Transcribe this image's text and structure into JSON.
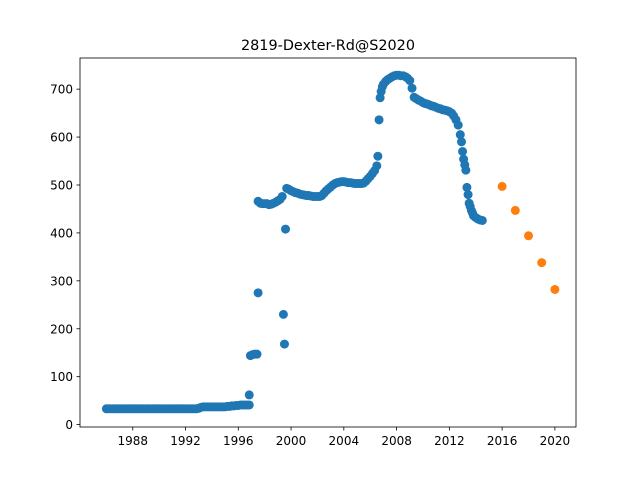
{
  "chart_data": {
    "type": "scatter",
    "title": "2819-Dexter-Rd@S2020",
    "xlabel": "",
    "ylabel": "",
    "xlim": [
      1984.0,
      2021.6
    ],
    "ylim": [
      -5,
      765
    ],
    "xticks": [
      1988,
      1992,
      1996,
      2000,
      2004,
      2008,
      2012,
      2016,
      2020
    ],
    "yticks": [
      0,
      100,
      200,
      300,
      400,
      500,
      600,
      700
    ],
    "grid": false,
    "colors": {
      "historical": "#1f77b4",
      "forecast": "#ff7f0e"
    },
    "series": [
      {
        "key": "historical",
        "points": [
          [
            1986.0,
            33
          ],
          [
            1986.17,
            33
          ],
          [
            1986.33,
            33
          ],
          [
            1986.5,
            33
          ],
          [
            1986.67,
            33
          ],
          [
            1986.83,
            33
          ],
          [
            1987.0,
            33
          ],
          [
            1987.17,
            33
          ],
          [
            1987.33,
            33
          ],
          [
            1987.5,
            33
          ],
          [
            1987.67,
            33
          ],
          [
            1987.83,
            33
          ],
          [
            1988.0,
            33
          ],
          [
            1988.17,
            33
          ],
          [
            1988.33,
            33
          ],
          [
            1988.5,
            33
          ],
          [
            1988.67,
            33
          ],
          [
            1988.83,
            33
          ],
          [
            1989.0,
            33
          ],
          [
            1989.17,
            33
          ],
          [
            1989.33,
            33
          ],
          [
            1989.5,
            33
          ],
          [
            1989.67,
            33
          ],
          [
            1989.83,
            33
          ],
          [
            1990.0,
            33
          ],
          [
            1990.17,
            33
          ],
          [
            1990.33,
            33
          ],
          [
            1990.5,
            33
          ],
          [
            1990.67,
            33
          ],
          [
            1990.83,
            33
          ],
          [
            1991.0,
            33
          ],
          [
            1991.17,
            33
          ],
          [
            1991.33,
            33
          ],
          [
            1991.5,
            33
          ],
          [
            1991.67,
            33
          ],
          [
            1991.83,
            33
          ],
          [
            1992.0,
            33
          ],
          [
            1992.17,
            33
          ],
          [
            1992.33,
            33
          ],
          [
            1992.5,
            33
          ],
          [
            1992.67,
            33
          ],
          [
            1992.83,
            33
          ],
          [
            1993.0,
            34
          ],
          [
            1993.17,
            36
          ],
          [
            1993.33,
            37
          ],
          [
            1993.5,
            37
          ],
          [
            1993.67,
            37
          ],
          [
            1993.83,
            37
          ],
          [
            1994.0,
            37
          ],
          [
            1994.17,
            37
          ],
          [
            1994.33,
            37
          ],
          [
            1994.5,
            37
          ],
          [
            1994.67,
            37
          ],
          [
            1994.83,
            37
          ],
          [
            1995.0,
            37
          ],
          [
            1995.17,
            38
          ],
          [
            1995.33,
            38
          ],
          [
            1995.5,
            39
          ],
          [
            1995.67,
            39
          ],
          [
            1995.83,
            40
          ],
          [
            1996.0,
            40
          ],
          [
            1996.17,
            41
          ],
          [
            1996.33,
            41
          ],
          [
            1996.5,
            41
          ],
          [
            1996.67,
            41
          ],
          [
            1996.83,
            41
          ],
          [
            1996.83,
            62
          ],
          [
            1996.92,
            144
          ],
          [
            1997.08,
            146
          ],
          [
            1997.25,
            147
          ],
          [
            1997.42,
            147
          ],
          [
            1997.5,
            275
          ],
          [
            1997.5,
            466
          ],
          [
            1997.67,
            462
          ],
          [
            1997.83,
            461
          ],
          [
            1998.0,
            461
          ],
          [
            1998.17,
            461
          ],
          [
            1998.33,
            459
          ],
          [
            1998.5,
            460
          ],
          [
            1998.67,
            462
          ],
          [
            1998.83,
            464
          ],
          [
            1999.0,
            467
          ],
          [
            1999.17,
            470
          ],
          [
            1999.33,
            476
          ],
          [
            1999.42,
            230
          ],
          [
            1999.5,
            168
          ],
          [
            1999.58,
            408
          ],
          [
            1999.67,
            493
          ],
          [
            1999.83,
            491
          ],
          [
            2000.0,
            488
          ],
          [
            2000.17,
            486
          ],
          [
            2000.33,
            484
          ],
          [
            2000.5,
            483
          ],
          [
            2000.67,
            481
          ],
          [
            2000.83,
            480
          ],
          [
            2001.0,
            479
          ],
          [
            2001.17,
            478
          ],
          [
            2001.33,
            478
          ],
          [
            2001.5,
            477
          ],
          [
            2001.67,
            476
          ],
          [
            2001.83,
            476
          ],
          [
            2002.0,
            476
          ],
          [
            2002.17,
            476
          ],
          [
            2002.33,
            478
          ],
          [
            2002.5,
            483
          ],
          [
            2002.67,
            488
          ],
          [
            2002.83,
            492
          ],
          [
            2003.0,
            496
          ],
          [
            2003.17,
            500
          ],
          [
            2003.33,
            503
          ],
          [
            2003.5,
            505
          ],
          [
            2003.67,
            506
          ],
          [
            2003.83,
            507
          ],
          [
            2004.0,
            507
          ],
          [
            2004.17,
            506
          ],
          [
            2004.33,
            505
          ],
          [
            2004.5,
            505
          ],
          [
            2004.67,
            504
          ],
          [
            2004.83,
            503
          ],
          [
            2005.0,
            503
          ],
          [
            2005.17,
            503
          ],
          [
            2005.33,
            503
          ],
          [
            2005.5,
            504
          ],
          [
            2005.67,
            508
          ],
          [
            2005.83,
            513
          ],
          [
            2006.0,
            518
          ],
          [
            2006.17,
            524
          ],
          [
            2006.33,
            530
          ],
          [
            2006.5,
            540
          ],
          [
            2006.58,
            560
          ],
          [
            2006.67,
            636
          ],
          [
            2006.75,
            682
          ],
          [
            2006.83,
            695
          ],
          [
            2006.92,
            705
          ],
          [
            2007.0,
            710
          ],
          [
            2007.17,
            716
          ],
          [
            2007.33,
            720
          ],
          [
            2007.5,
            723
          ],
          [
            2007.67,
            726
          ],
          [
            2007.83,
            728
          ],
          [
            2008.0,
            729
          ],
          [
            2008.17,
            729
          ],
          [
            2008.33,
            728
          ],
          [
            2008.5,
            728
          ],
          [
            2008.67,
            726
          ],
          [
            2008.83,
            723
          ],
          [
            2009.0,
            718
          ],
          [
            2009.17,
            702
          ],
          [
            2009.33,
            683
          ],
          [
            2009.5,
            680
          ],
          [
            2009.67,
            677
          ],
          [
            2009.83,
            675
          ],
          [
            2010.0,
            672
          ],
          [
            2010.17,
            670
          ],
          [
            2010.33,
            669
          ],
          [
            2010.5,
            667
          ],
          [
            2010.67,
            665
          ],
          [
            2010.83,
            664
          ],
          [
            2011.0,
            662
          ],
          [
            2011.17,
            660
          ],
          [
            2011.33,
            659
          ],
          [
            2011.5,
            657
          ],
          [
            2011.67,
            656
          ],
          [
            2011.83,
            655
          ],
          [
            2012.0,
            653
          ],
          [
            2012.17,
            650
          ],
          [
            2012.33,
            644
          ],
          [
            2012.5,
            636
          ],
          [
            2012.67,
            625
          ],
          [
            2012.83,
            605
          ],
          [
            2012.92,
            590
          ],
          [
            2013.0,
            570
          ],
          [
            2013.08,
            554
          ],
          [
            2013.17,
            542
          ],
          [
            2013.25,
            531
          ],
          [
            2013.33,
            495
          ],
          [
            2013.42,
            480
          ],
          [
            2013.5,
            462
          ],
          [
            2013.58,
            455
          ],
          [
            2013.67,
            447
          ],
          [
            2013.75,
            442
          ],
          [
            2013.83,
            436
          ],
          [
            2014.0,
            432
          ],
          [
            2014.17,
            429
          ],
          [
            2014.33,
            427
          ],
          [
            2014.5,
            426
          ]
        ]
      },
      {
        "key": "forecast",
        "points": [
          [
            2016.0,
            497
          ],
          [
            2017.0,
            447
          ],
          [
            2018.0,
            394
          ],
          [
            2019.0,
            338
          ],
          [
            2020.0,
            282
          ]
        ]
      }
    ]
  }
}
